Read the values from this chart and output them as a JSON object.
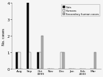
{
  "categories": [
    "Aug",
    "Sep",
    "Oct\n1999",
    "Nov",
    "Dec",
    "Jan",
    "Feb\n2000",
    "Mar"
  ],
  "cats": [
    1,
    4,
    1,
    0,
    0,
    0,
    0,
    0
  ],
  "humans": [
    1,
    1,
    1,
    0,
    1,
    0,
    0,
    0
  ],
  "secondary": [
    0,
    0,
    2,
    0,
    1,
    0,
    0,
    1
  ],
  "cat_color": "#111111",
  "human_color": "#f0f0f0",
  "secondary_color": "#b0b0b0",
  "ylabel": "No. cases",
  "ylim": [
    0,
    4
  ],
  "yticks": [
    0,
    1,
    2,
    3,
    4
  ],
  "legend_labels": [
    "Cats",
    "Humans",
    "Secondary human cases"
  ],
  "bar_width": 0.22,
  "edgecolor_cats": "#000000",
  "edgecolor_humans": "#555555",
  "edgecolor_secondary": "#555555"
}
